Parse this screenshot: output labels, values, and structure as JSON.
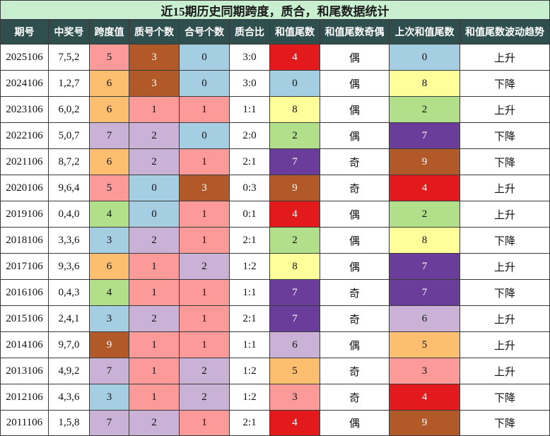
{
  "title": "近15期历史同期跨度，质合，和尾数据统计",
  "table": {
    "columns": [
      "期号",
      "中奖号",
      "跨度值",
      "质号个数",
      "合号个数",
      "质合比",
      "和值尾数",
      "和值尾数奇偶",
      "上次和值尾数",
      "和值尾数波动趋势"
    ],
    "rows": [
      [
        2025106,
        "7,5,2",
        5,
        3,
        0,
        "3:0",
        4,
        "偶",
        0,
        "上升"
      ],
      [
        2024106,
        "1,2,7",
        6,
        3,
        0,
        "3:0",
        0,
        "偶",
        8,
        "下降"
      ],
      [
        2023106,
        "6,0,2",
        6,
        1,
        1,
        "1:1",
        8,
        "偶",
        2,
        "上升"
      ],
      [
        2022106,
        "5,0,7",
        7,
        2,
        0,
        "2:0",
        2,
        "偶",
        7,
        "下降"
      ],
      [
        2021106,
        "8,7,2",
        6,
        2,
        1,
        "2:1",
        7,
        "奇",
        9,
        "下降"
      ],
      [
        2020106,
        "9,6,4",
        5,
        0,
        3,
        "0:3",
        9,
        "奇",
        4,
        "上升"
      ],
      [
        2019106,
        "0,4,0",
        4,
        0,
        1,
        "0:1",
        4,
        "偶",
        2,
        "上升"
      ],
      [
        2018106,
        "3,3,6",
        3,
        2,
        1,
        "2:1",
        2,
        "偶",
        8,
        "下降"
      ],
      [
        2017106,
        "9,3,6",
        6,
        1,
        2,
        "1:2",
        8,
        "偶",
        7,
        "上升"
      ],
      [
        2016106,
        "0,4,3",
        4,
        1,
        1,
        "1:1",
        7,
        "奇",
        7,
        "下降"
      ],
      [
        2015106,
        "2,4,1",
        3,
        2,
        1,
        "2:1",
        7,
        "奇",
        6,
        "上升"
      ],
      [
        2014106,
        "9,7,0",
        9,
        1,
        1,
        "1:1",
        6,
        "偶",
        5,
        "上升"
      ],
      [
        2013106,
        "4,9,2",
        7,
        1,
        2,
        "1:2",
        5,
        "奇",
        3,
        "上升"
      ],
      [
        2012106,
        "4,3,6",
        3,
        1,
        2,
        "1:2",
        3,
        "奇",
        4,
        "下降"
      ],
      [
        2011106,
        "1,5,8",
        7,
        2,
        1,
        "2:1",
        4,
        "偶",
        9,
        "下降"
      ]
    ],
    "cell_colors": [
      [
        "#fb9a99",
        "#b15928",
        "#a6cee3",
        "#e31a1c",
        "#a6cee3"
      ],
      [
        "#fdbf6f",
        "#b15928",
        "#a6cee3",
        "#a6cee3",
        "#ffff99"
      ],
      [
        "#fdbf6f",
        "#fb9a99",
        "#fb9a99",
        "#ffff99",
        "#b2df8a"
      ],
      [
        "#cab2d6",
        "#cab2d6",
        "#a6cee3",
        "#b2df8a",
        "#6a3d9a"
      ],
      [
        "#fdbf6f",
        "#cab2d6",
        "#fb9a99",
        "#6a3d9a",
        "#b15928"
      ],
      [
        "#fb9a99",
        "#a6cee3",
        "#b15928",
        "#b15928",
        "#e31a1c"
      ],
      [
        "#b2df8a",
        "#a6cee3",
        "#fb9a99",
        "#e31a1c",
        "#b2df8a"
      ],
      [
        "#a6cee3",
        "#cab2d6",
        "#fb9a99",
        "#b2df8a",
        "#ffff99"
      ],
      [
        "#fdbf6f",
        "#fb9a99",
        "#cab2d6",
        "#ffff99",
        "#6a3d9a"
      ],
      [
        "#b2df8a",
        "#fb9a99",
        "#fb9a99",
        "#6a3d9a",
        "#6a3d9a"
      ],
      [
        "#a6cee3",
        "#cab2d6",
        "#fb9a99",
        "#6a3d9a",
        "#cab2d6"
      ],
      [
        "#b15928",
        "#fb9a99",
        "#fb9a99",
        "#cab2d6",
        "#fdbf6f"
      ],
      [
        "#cab2d6",
        "#fb9a99",
        "#cab2d6",
        "#fdbf6f",
        "#fb9a99"
      ],
      [
        "#a6cee3",
        "#fb9a99",
        "#cab2d6",
        "#fb9a99",
        "#e31a1c"
      ],
      [
        "#cab2d6",
        "#cab2d6",
        "#fb9a99",
        "#e31a1c",
        "#b15928"
      ]
    ]
  }
}
